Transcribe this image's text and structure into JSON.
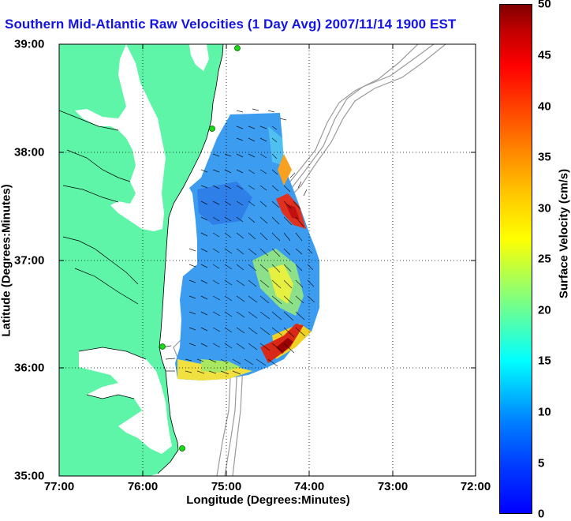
{
  "title": "Southern Mid-Atlantic Raw Velocities (1 Day Avg) 2007/11/14 1900 EST",
  "axes": {
    "xlabel": "Longitude (Degrees:Minutes)",
    "ylabel": "Latitude (Degrees:Minutes)",
    "x_ticks": [
      "77:00",
      "76:00",
      "75:00",
      "74:00",
      "73:00",
      "72:00"
    ],
    "y_ticks": [
      "39:00",
      "38:00",
      "37:00",
      "36:00",
      "35:00"
    ]
  },
  "colorbar": {
    "label": "Surface Velocity (cm/s)",
    "ticks": [
      "50",
      "45",
      "40",
      "35",
      "30",
      "25",
      "20",
      "15",
      "10",
      "5",
      "0"
    ],
    "min": 0,
    "max": 50,
    "colormap": "jet"
  },
  "colors": {
    "land": "#5ef5a8",
    "water": "#ffffff",
    "title": "#1414e6",
    "bathymetry": "#9a9a9a",
    "station": "#19d919"
  }
}
